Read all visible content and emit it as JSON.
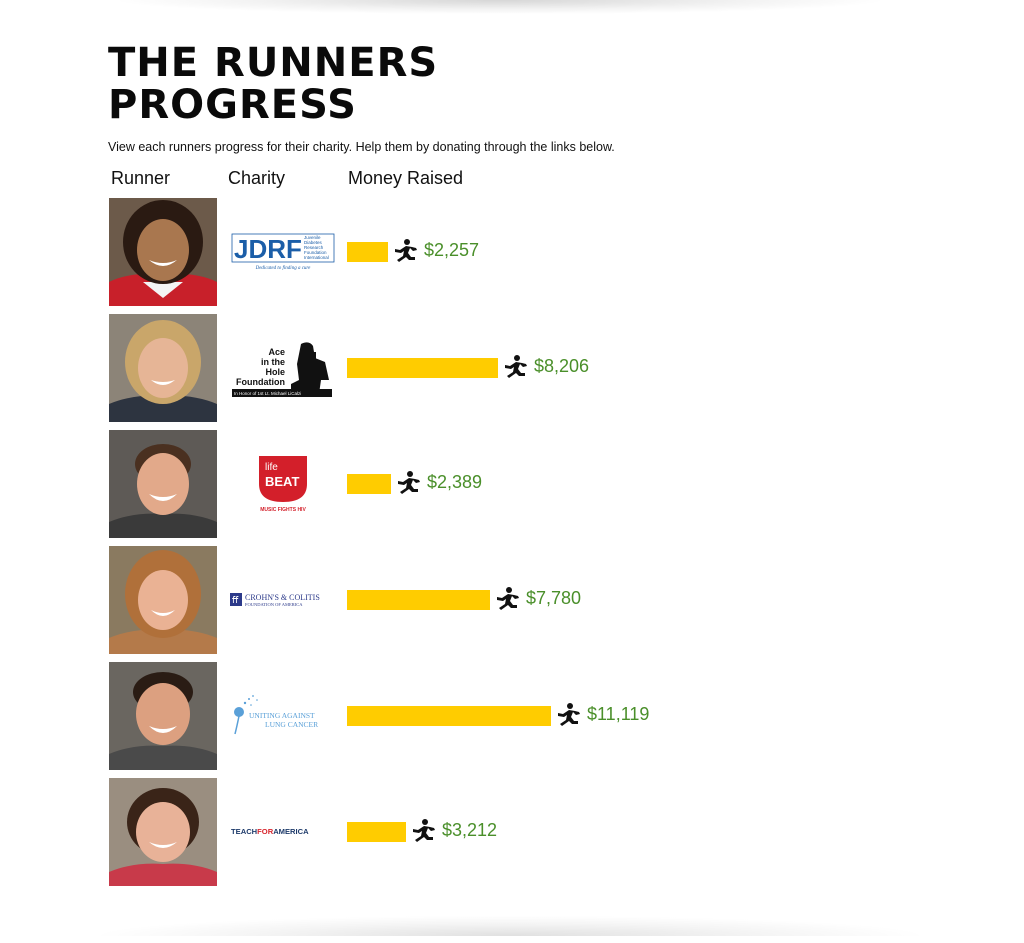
{
  "page": {
    "title_line1": "THE RUNNERS",
    "title_line2": "PROGRESS",
    "intro": "View each runners progress for their charity. Help them by donating through the links below."
  },
  "columns": {
    "runner": "Runner",
    "charity": "Charity",
    "money": "Money Raised"
  },
  "colors": {
    "bar": "#ffcc00",
    "amount": "#4a8f2a"
  },
  "icons": {
    "progress_marker": "runner-icon"
  },
  "runners": [
    {
      "amount_label": "$2,257",
      "amount_value": 2257,
      "charity": {
        "logo": "jdrf-logo",
        "text_main": "JDRF",
        "text_lines": [
          "Juvenile",
          "Diabetes",
          "Research",
          "Foundation",
          "International"
        ],
        "tagline": "Dedicated to finding a cure"
      }
    },
    {
      "amount_label": "$8,206",
      "amount_value": 8206,
      "charity": {
        "logo": "ace-in-the-hole-logo",
        "text_lines": [
          "Ace",
          "in the",
          "Hole",
          "Foundation"
        ],
        "tagline": "In Honor of 1st Lt. Michael LiCalzi"
      }
    },
    {
      "amount_label": "$2,389",
      "amount_value": 2389,
      "charity": {
        "logo": "lifebeat-logo",
        "text_lines": [
          "life",
          "BEAT"
        ],
        "tagline": "MUSIC FIGHTS HIV"
      }
    },
    {
      "amount_label": "$7,780",
      "amount_value": 7780,
      "charity": {
        "logo": "crohns-colitis-logo",
        "text_lines": [
          "CROHN'S & COLITIS",
          "FOUNDATION OF AMERICA"
        ]
      }
    },
    {
      "amount_label": "$11,119",
      "amount_value": 11119,
      "charity": {
        "logo": "uniting-against-lung-cancer-logo",
        "text_lines": [
          "UNITING AGAINST",
          "LUNG CANCER"
        ]
      }
    },
    {
      "amount_label": "$3,212",
      "amount_value": 3212,
      "charity": {
        "logo": "teach-for-america-logo",
        "text_lines": [
          "TEACH",
          "FOR",
          "AMERICA"
        ]
      }
    }
  ]
}
